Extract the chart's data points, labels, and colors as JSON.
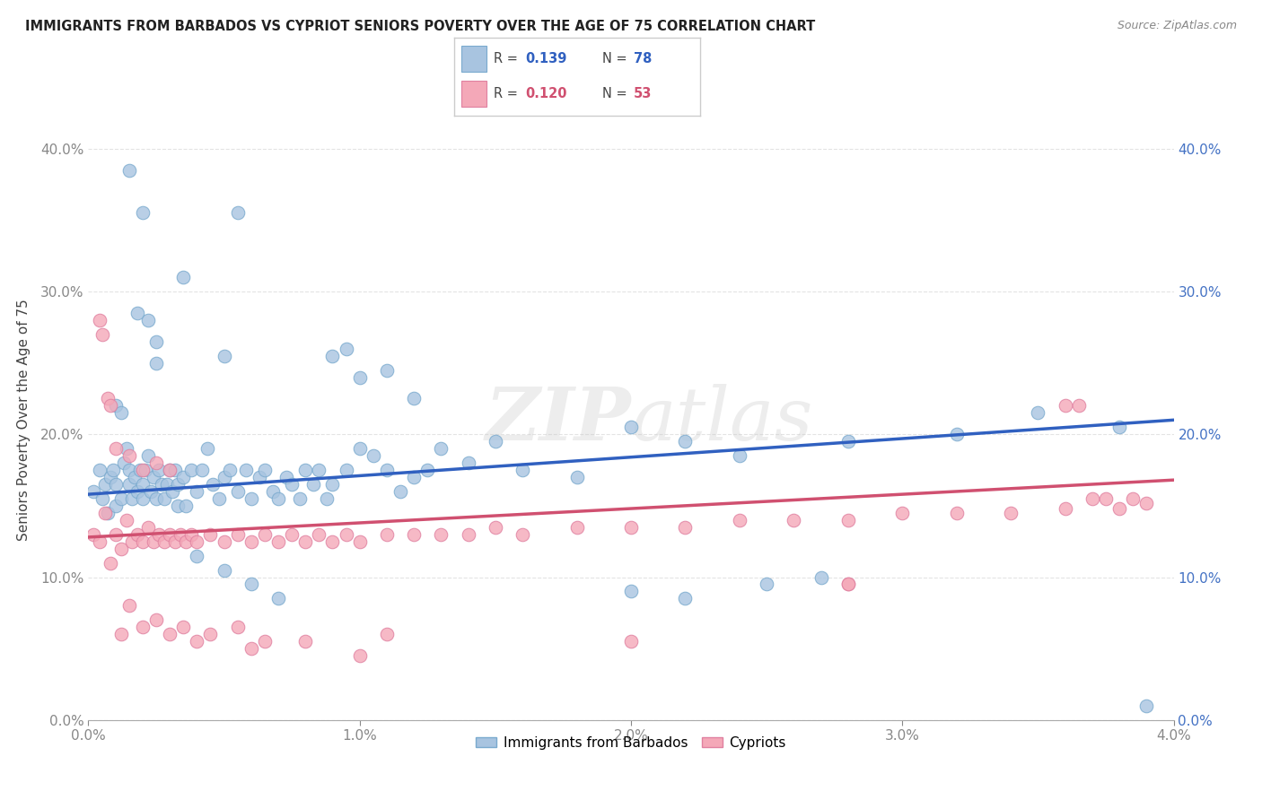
{
  "title": "IMMIGRANTS FROM BARBADOS VS CYPRIOT SENIORS POVERTY OVER THE AGE OF 75 CORRELATION CHART",
  "source": "Source: ZipAtlas.com",
  "ylabel": "Seniors Poverty Over the Age of 75",
  "xlim": [
    0.0,
    0.04
  ],
  "ylim": [
    0.0,
    0.42
  ],
  "yticks": [
    0.0,
    0.1,
    0.2,
    0.3,
    0.4
  ],
  "xticks": [
    0.0,
    0.01,
    0.02,
    0.03,
    0.04
  ],
  "blue_scatter": "#a8c4e0",
  "blue_edge": "#7aaace",
  "pink_scatter": "#f4a8b8",
  "pink_edge": "#e080a0",
  "blue_line": "#3060c0",
  "pink_line": "#d05070",
  "background": "#ffffff",
  "grid_color": "#d8d8d8",
  "watermark": "ZIPAtlas",
  "barbados_x": [
    0.0002,
    0.0004,
    0.0005,
    0.0006,
    0.0007,
    0.0008,
    0.0009,
    0.001,
    0.001,
    0.0012,
    0.0013,
    0.0014,
    0.0015,
    0.0015,
    0.0016,
    0.0017,
    0.0018,
    0.0019,
    0.002,
    0.002,
    0.0021,
    0.0022,
    0.0023,
    0.0024,
    0.0025,
    0.0026,
    0.0027,
    0.0028,
    0.0029,
    0.003,
    0.0031,
    0.0032,
    0.0033,
    0.0033,
    0.0035,
    0.0036,
    0.0038,
    0.004,
    0.0042,
    0.0044,
    0.0046,
    0.0048,
    0.005,
    0.0052,
    0.0055,
    0.0058,
    0.006,
    0.0063,
    0.0065,
    0.0068,
    0.007,
    0.0073,
    0.0075,
    0.0078,
    0.008,
    0.0083,
    0.0085,
    0.0088,
    0.009,
    0.0095,
    0.01,
    0.0105,
    0.011,
    0.0115,
    0.012,
    0.0125,
    0.013,
    0.014,
    0.015,
    0.016,
    0.018,
    0.02,
    0.022,
    0.024,
    0.028,
    0.032,
    0.035,
    0.038
  ],
  "barbados_y": [
    0.16,
    0.175,
    0.155,
    0.165,
    0.145,
    0.17,
    0.175,
    0.15,
    0.165,
    0.155,
    0.18,
    0.19,
    0.165,
    0.175,
    0.155,
    0.17,
    0.16,
    0.175,
    0.155,
    0.165,
    0.175,
    0.185,
    0.16,
    0.17,
    0.155,
    0.175,
    0.165,
    0.155,
    0.165,
    0.175,
    0.16,
    0.175,
    0.15,
    0.165,
    0.17,
    0.15,
    0.175,
    0.16,
    0.175,
    0.19,
    0.165,
    0.155,
    0.17,
    0.175,
    0.16,
    0.175,
    0.155,
    0.17,
    0.175,
    0.16,
    0.155,
    0.17,
    0.165,
    0.155,
    0.175,
    0.165,
    0.175,
    0.155,
    0.165,
    0.175,
    0.19,
    0.185,
    0.175,
    0.16,
    0.17,
    0.175,
    0.19,
    0.18,
    0.195,
    0.175,
    0.17,
    0.205,
    0.195,
    0.185,
    0.195,
    0.2,
    0.215,
    0.205
  ],
  "barbados_y_outliers": [
    [
      0.0015,
      0.385
    ],
    [
      0.002,
      0.355
    ],
    [
      0.0055,
      0.355
    ],
    [
      0.0035,
      0.31
    ],
    [
      0.0018,
      0.285
    ],
    [
      0.0022,
      0.28
    ],
    [
      0.0025,
      0.265
    ],
    [
      0.0025,
      0.25
    ],
    [
      0.001,
      0.22
    ],
    [
      0.0012,
      0.215
    ],
    [
      0.005,
      0.255
    ],
    [
      0.009,
      0.255
    ],
    [
      0.0095,
      0.26
    ],
    [
      0.01,
      0.24
    ],
    [
      0.011,
      0.245
    ],
    [
      0.012,
      0.225
    ],
    [
      0.004,
      0.115
    ],
    [
      0.005,
      0.105
    ],
    [
      0.006,
      0.095
    ],
    [
      0.007,
      0.085
    ],
    [
      0.02,
      0.09
    ],
    [
      0.022,
      0.085
    ],
    [
      0.025,
      0.095
    ],
    [
      0.027,
      0.1
    ],
    [
      0.039,
      0.01
    ]
  ],
  "cypriot_x": [
    0.0002,
    0.0004,
    0.0006,
    0.0008,
    0.001,
    0.0012,
    0.0014,
    0.0016,
    0.0018,
    0.002,
    0.0022,
    0.0024,
    0.0026,
    0.0028,
    0.003,
    0.0032,
    0.0034,
    0.0036,
    0.0038,
    0.004,
    0.0045,
    0.005,
    0.0055,
    0.006,
    0.0065,
    0.007,
    0.0075,
    0.008,
    0.0085,
    0.009,
    0.0095,
    0.01,
    0.011,
    0.012,
    0.013,
    0.014,
    0.015,
    0.016,
    0.018,
    0.02,
    0.022,
    0.024,
    0.026,
    0.028,
    0.03,
    0.032,
    0.034,
    0.036,
    0.037,
    0.0375,
    0.038,
    0.0385,
    0.039
  ],
  "cypriot_y": [
    0.13,
    0.125,
    0.145,
    0.11,
    0.13,
    0.12,
    0.14,
    0.125,
    0.13,
    0.125,
    0.135,
    0.125,
    0.13,
    0.125,
    0.13,
    0.125,
    0.13,
    0.125,
    0.13,
    0.125,
    0.13,
    0.125,
    0.13,
    0.125,
    0.13,
    0.125,
    0.13,
    0.125,
    0.13,
    0.125,
    0.13,
    0.125,
    0.13,
    0.13,
    0.13,
    0.13,
    0.135,
    0.13,
    0.135,
    0.135,
    0.135,
    0.14,
    0.14,
    0.14,
    0.145,
    0.145,
    0.145,
    0.148,
    0.155,
    0.155,
    0.148,
    0.155,
    0.152
  ],
  "cypriot_y_outliers": [
    [
      0.0004,
      0.28
    ],
    [
      0.0005,
      0.27
    ],
    [
      0.0007,
      0.225
    ],
    [
      0.0008,
      0.22
    ],
    [
      0.001,
      0.19
    ],
    [
      0.0015,
      0.185
    ],
    [
      0.002,
      0.175
    ],
    [
      0.0025,
      0.18
    ],
    [
      0.003,
      0.175
    ],
    [
      0.0012,
      0.06
    ],
    [
      0.0015,
      0.08
    ],
    [
      0.002,
      0.065
    ],
    [
      0.0025,
      0.07
    ],
    [
      0.003,
      0.06
    ],
    [
      0.0035,
      0.065
    ],
    [
      0.004,
      0.055
    ],
    [
      0.0045,
      0.06
    ],
    [
      0.0055,
      0.065
    ],
    [
      0.006,
      0.05
    ],
    [
      0.0065,
      0.055
    ],
    [
      0.008,
      0.055
    ],
    [
      0.01,
      0.045
    ],
    [
      0.011,
      0.06
    ],
    [
      0.02,
      0.055
    ],
    [
      0.028,
      0.095
    ],
    [
      0.036,
      0.22
    ],
    [
      0.0365,
      0.22
    ],
    [
      0.028,
      0.095
    ]
  ],
  "blue_trend_x0": 0.0,
  "blue_trend_y0": 0.158,
  "blue_trend_x1": 0.04,
  "blue_trend_y1": 0.21,
  "pink_trend_x0": 0.0,
  "pink_trend_y0": 0.128,
  "pink_trend_x1": 0.04,
  "pink_trend_y1": 0.168
}
